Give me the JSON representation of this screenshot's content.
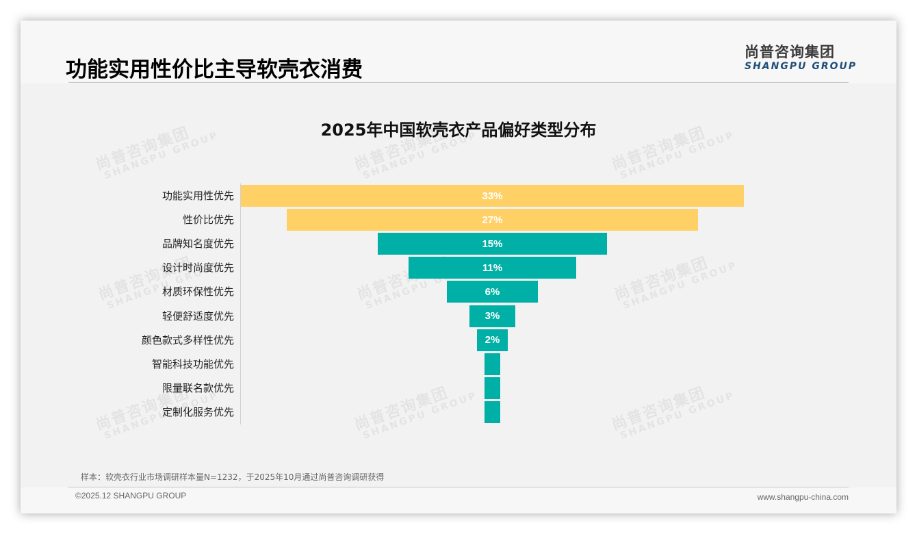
{
  "page": {
    "title": "功能实用性价比主导软壳衣消费",
    "logo_cn": "尚普咨询集团",
    "logo_en": "SHANGPU GROUP"
  },
  "watermark": {
    "cn": "尚普咨询集团",
    "en": "SHANGPU GROUP"
  },
  "colors": {
    "highlight": "#FFD066",
    "primary": "#00B0A6",
    "background": "#F2F2F2",
    "logo_blue": "#1F4E79"
  },
  "chart_data": {
    "type": "bar",
    "orientation": "horizontal",
    "style": "funnel (centered bars)",
    "title": "2025年中国软壳衣产品偏好类型分布",
    "xlabel": "",
    "ylabel": "",
    "unit": "%",
    "categories": [
      "功能实用性优先",
      "性价比优先",
      "品牌知名度优先",
      "设计时尚度优先",
      "材质环保性优先",
      "轻便舒适度优先",
      "颜色款式多样性优先",
      "智能科技功能优先",
      "限量联名款优先",
      "定制化服务优先"
    ],
    "values": [
      33,
      27,
      15,
      11,
      6,
      3,
      2,
      1,
      1,
      1
    ],
    "labels": [
      "33%",
      "27%",
      "15%",
      "11%",
      "6%",
      "3%",
      "2%",
      "",
      "",
      ""
    ],
    "bar_colors": [
      "#FFD066",
      "#FFD066",
      "#00B0A6",
      "#00B0A6",
      "#00B0A6",
      "#00B0A6",
      "#00B0A6",
      "#00B0A6",
      "#00B0A6",
      "#00B0A6"
    ],
    "grid": false,
    "legend": null
  },
  "footer": {
    "source_note": "样本：软壳衣行业市场调研样本量N=1232，于2025年10月通过尚普咨询调研获得",
    "copyright": "©2025.12 SHANGPU GROUP",
    "website": "www.shangpu-china.com"
  }
}
